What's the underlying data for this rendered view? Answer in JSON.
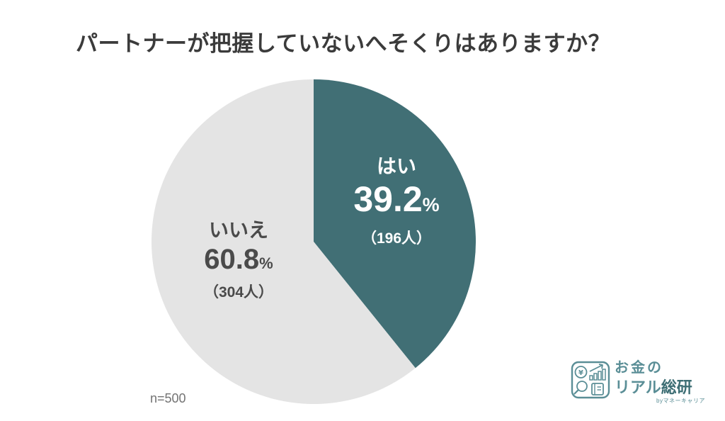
{
  "title": "パートナーが把握していないへそくりはありますか？",
  "sample_note": "n=500",
  "chart_data": {
    "type": "pie",
    "title": "パートナーが把握していないへそくりはありますか？",
    "categories": [
      "はい",
      "いいえ"
    ],
    "ids": [
      "yes",
      "no"
    ],
    "values": [
      39.2,
      60.8
    ],
    "counts": [
      196,
      304
    ],
    "n": 500,
    "unit": "%",
    "colors": [
      "#416f75",
      "#e4e4e4"
    ],
    "start_angle_deg": 0,
    "direction": "clockwise",
    "labels": [
      {
        "name": "はい",
        "percent": "39.2",
        "percent_suffix": "%",
        "count_label": "（196人）"
      },
      {
        "name": "いいえ",
        "percent": "60.8",
        "percent_suffix": "%",
        "count_label": "（304人）"
      }
    ]
  },
  "logo": {
    "line1": "お金の",
    "line2_light": "リアル",
    "line2_dark": "総研",
    "byline": "byマネーキャリア",
    "accent_color": "#5a8e96"
  }
}
